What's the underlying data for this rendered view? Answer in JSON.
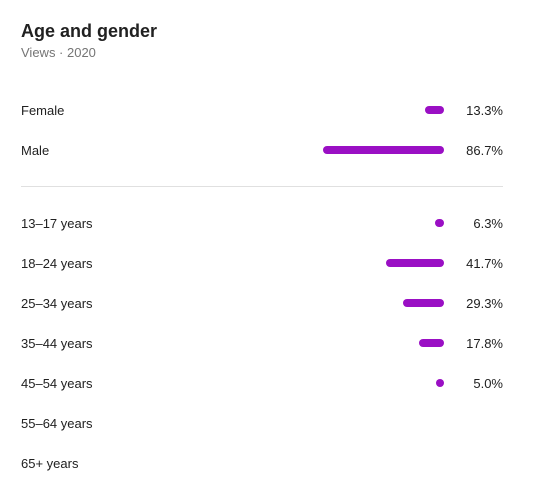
{
  "card": {
    "title": "Age and gender",
    "subtitle": "Views · 2020"
  },
  "colors": {
    "bar": "#9a0fc4",
    "divider": "#e0e0e0",
    "subtitle": "#757575"
  },
  "gender": [
    {
      "label": "Female",
      "value": "13.3%",
      "percent": 13.3
    },
    {
      "label": "Male",
      "value": "86.7%",
      "percent": 86.7
    }
  ],
  "age": [
    {
      "label": "13–17 years",
      "value": "6.3%",
      "percent": 6.3
    },
    {
      "label": "18–24 years",
      "value": "41.7%",
      "percent": 41.7
    },
    {
      "label": "25–34 years",
      "value": "29.3%",
      "percent": 29.3
    },
    {
      "label": "35–44 years",
      "value": "17.8%",
      "percent": 17.8
    },
    {
      "label": "45–54 years",
      "value": "5.0%",
      "percent": 5.0
    },
    {
      "label": "55–64 years",
      "value": "",
      "percent": 0
    },
    {
      "label": "65+ years",
      "value": "",
      "percent": 0
    }
  ]
}
